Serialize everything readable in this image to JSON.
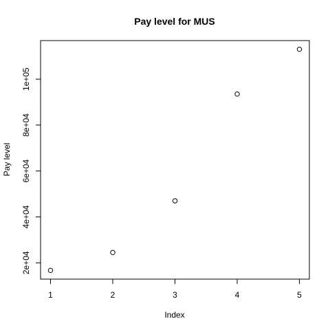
{
  "chart_data": {
    "type": "scatter",
    "title": "Pay level for  MUS",
    "xlabel": "Index",
    "ylabel": "Pay level",
    "x": [
      1,
      2,
      3,
      4,
      5
    ],
    "y": [
      16700,
      24500,
      47000,
      93500,
      113000
    ],
    "xlim": [
      0.84,
      5.16
    ],
    "ylim": [
      12900,
      116800
    ],
    "xticks": [
      1,
      2,
      3,
      4,
      5
    ],
    "xtick_labels": [
      "1",
      "2",
      "3",
      "4",
      "5"
    ],
    "yticks": [
      20000,
      40000,
      60000,
      80000,
      100000
    ],
    "ytick_labels": [
      "2e+04",
      "4e+04",
      "6e+04",
      "8e+04",
      "1e+05"
    ],
    "marker": "open-circle",
    "grid": false,
    "legend": "none",
    "colors": {
      "points": "#000000",
      "axes": "#000000",
      "background": "#ffffff"
    }
  }
}
